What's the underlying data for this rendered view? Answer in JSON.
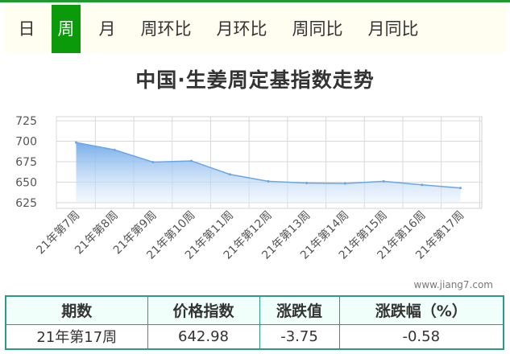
{
  "tabs": [
    {
      "label": "日",
      "active": false
    },
    {
      "label": "周",
      "active": true
    },
    {
      "label": "月",
      "active": false
    },
    {
      "label": "周环比",
      "active": false
    },
    {
      "label": "月环比",
      "active": false
    },
    {
      "label": "周同比",
      "active": false
    },
    {
      "label": "月同比",
      "active": false
    }
  ],
  "colors": {
    "accent": "#0a9a0a",
    "area_fill": "#7fb4ea",
    "line": "#6aa6e6",
    "table_border": "#2a9a8a"
  },
  "watermark": "www.jiang7.com",
  "chart_data": {
    "type": "area",
    "title": "中国·生姜周定基指数走势",
    "xlabel": "",
    "ylabel": "",
    "x": [
      "21年第7周",
      "21年第8周",
      "21年第9周",
      "21年第10周",
      "21年第11周",
      "21年第12周",
      "21年第13周",
      "21年第14周",
      "21年第15周",
      "21年第16周",
      "21年第17周"
    ],
    "values": [
      698.5,
      689.5,
      674.5,
      676,
      659.5,
      651,
      649,
      648.5,
      651,
      646.7,
      642.98
    ],
    "yticks": [
      625,
      650,
      675,
      700,
      725
    ],
    "ylim": [
      618,
      730
    ],
    "grid": true,
    "legend": "none"
  },
  "table": {
    "headers": [
      "期数",
      "价格指数",
      "涨跌值",
      "涨跌幅（%）"
    ],
    "rows": [
      [
        "21年第17周",
        "642.98",
        "-3.75",
        "-0.58"
      ]
    ]
  }
}
